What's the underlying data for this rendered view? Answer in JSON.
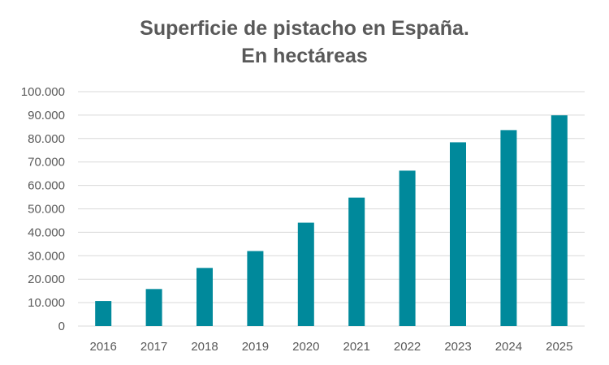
{
  "chart_data": {
    "type": "bar",
    "title_line1": "Superficie de pistacho en España.",
    "title_line2": "En hectáreas",
    "xlabel": "",
    "ylabel": "",
    "categories": [
      "2016",
      "2017",
      "2018",
      "2019",
      "2020",
      "2021",
      "2022",
      "2023",
      "2024",
      "2025"
    ],
    "values": [
      10700,
      15800,
      24800,
      32000,
      44100,
      54800,
      66300,
      78400,
      83600,
      89900
    ],
    "ylim": [
      0,
      100000
    ],
    "yticks": [
      0,
      10000,
      20000,
      30000,
      40000,
      50000,
      60000,
      70000,
      80000,
      90000,
      100000
    ],
    "ytick_labels": [
      "0",
      "10.000",
      "20.000",
      "30.000",
      "40.000",
      "50.000",
      "60.000",
      "70.000",
      "80.000",
      "90.000",
      "100.000"
    ],
    "grid": true,
    "legend": "none",
    "bar_color": "#00899B",
    "grid_color": "#D9D9D9",
    "text_color": "#595959"
  }
}
